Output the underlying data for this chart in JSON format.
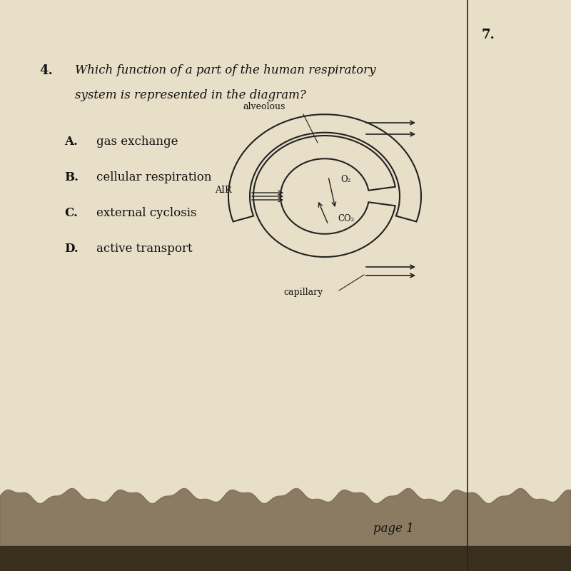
{
  "background_color": "#d4c9b0",
  "page_background": "#e8dfc8",
  "question_number": "4.",
  "question_text_line1": "Which function of a part of the human respiratory",
  "question_text_line2": "system is represented in the diagram?",
  "options": [
    {
      "label": "A.",
      "text": "gas exchange"
    },
    {
      "label": "B.",
      "text": "cellular respiration"
    },
    {
      "label": "C.",
      "text": "external cyclosis"
    },
    {
      "label": "D.",
      "text": "active transport"
    }
  ],
  "diagram_labels": {
    "alveolous": "alveolous",
    "O2": "O₂",
    "AIR": "AIR",
    "CO2": "CO₂",
    "capillary": "capillary"
  },
  "side_number": "7.",
  "page_label": "page 1",
  "line_color": "#222222",
  "text_color": "#111111"
}
